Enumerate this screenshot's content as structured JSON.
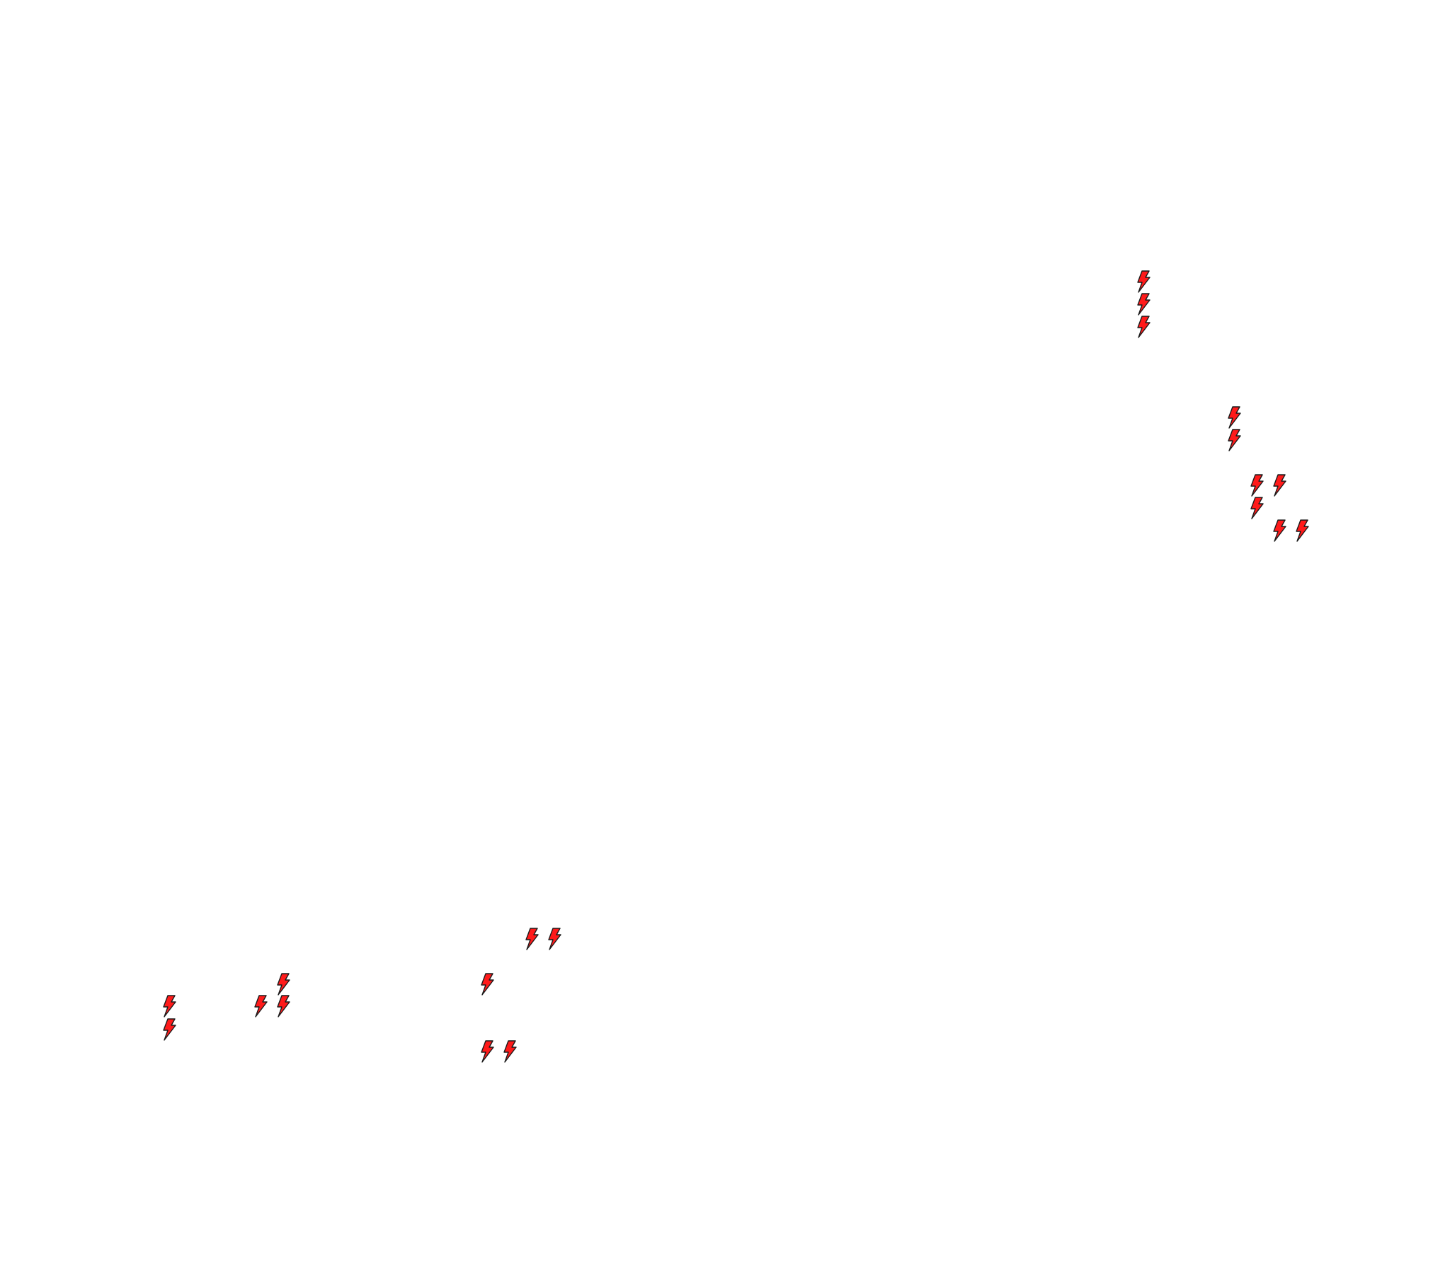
{
  "background": "#ffffff",
  "marker": {
    "icon": "lightning-bolt-icon",
    "fill": "#ff1a1a",
    "stroke": "#1a1a1a",
    "count": 20
  }
}
